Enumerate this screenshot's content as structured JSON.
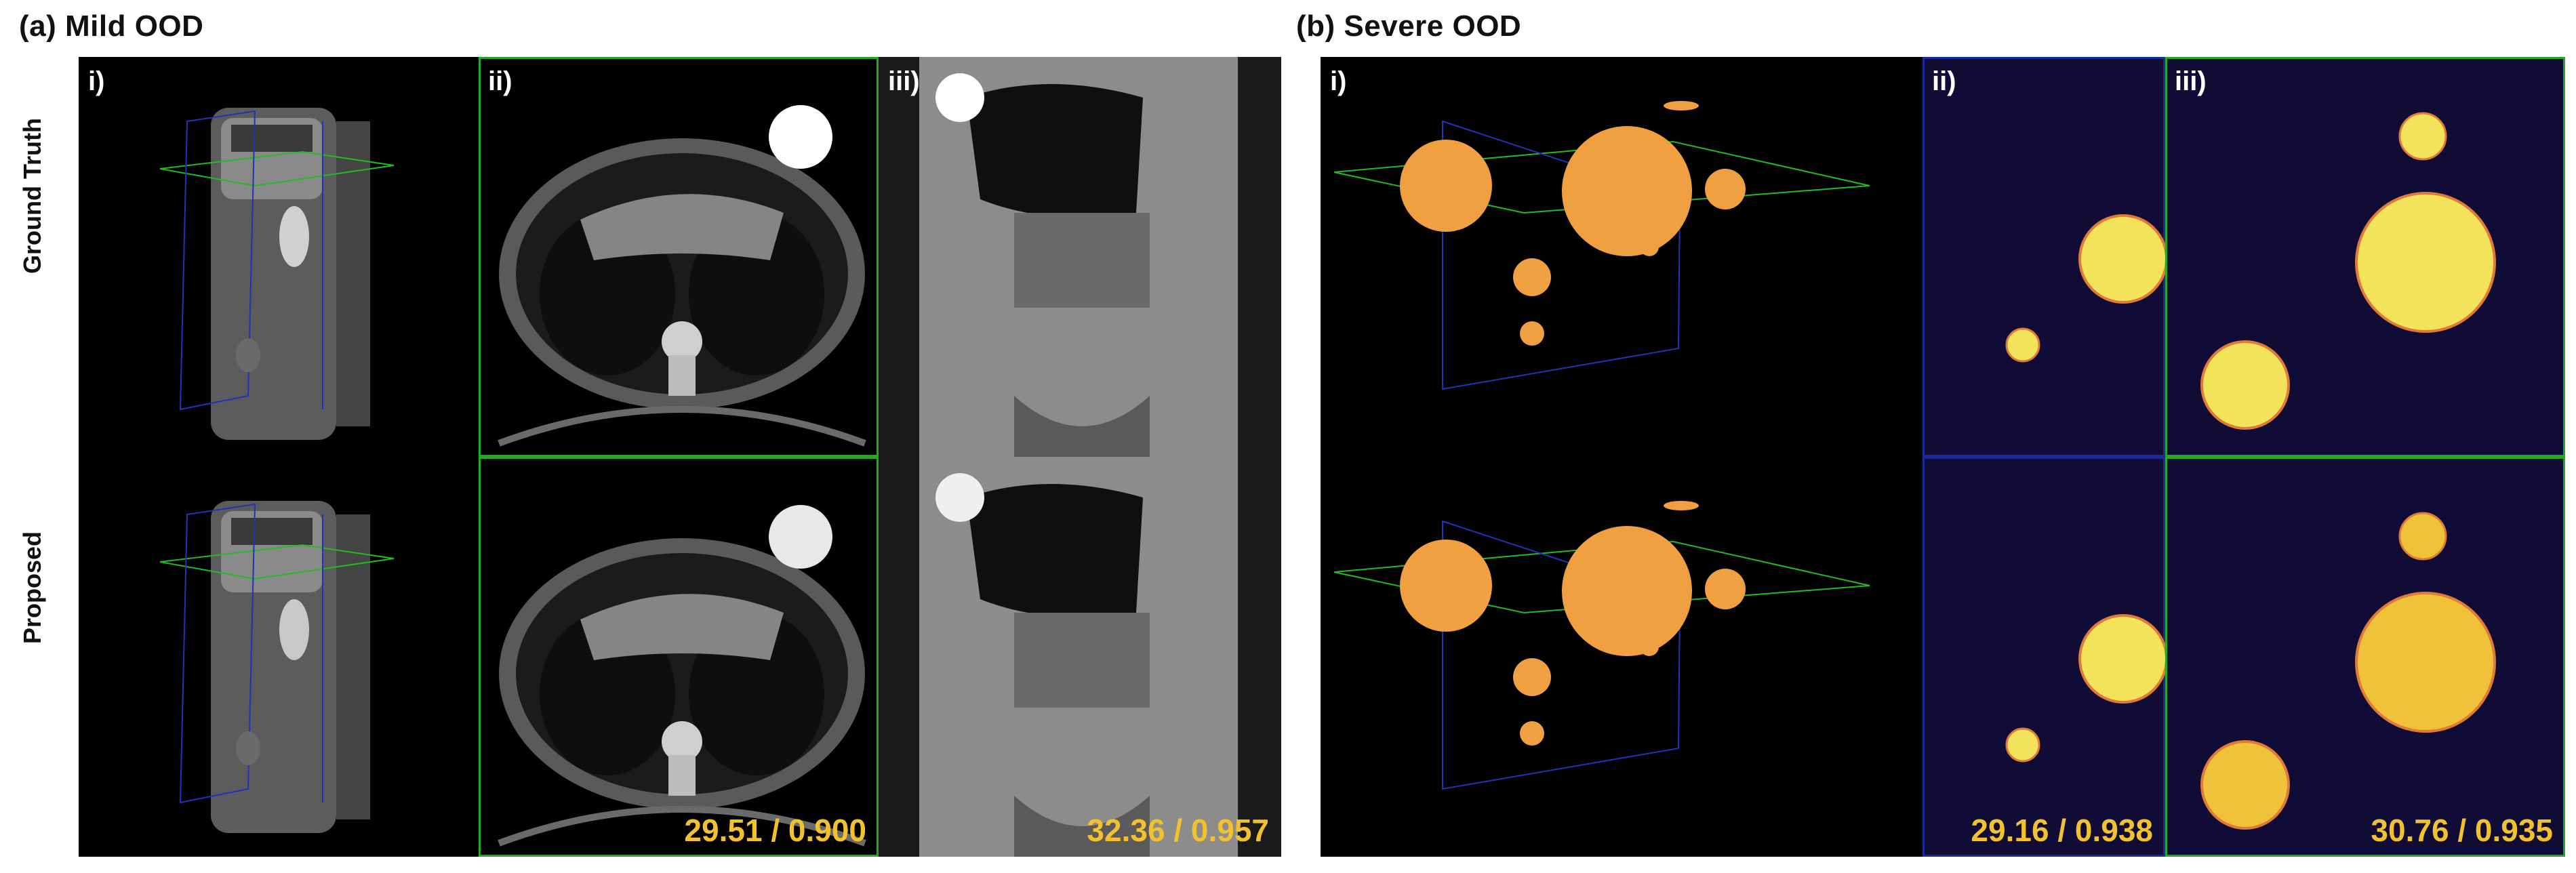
{
  "section_a": {
    "title": "(a) Mild OOD",
    "row_labels": [
      "Ground Truth",
      "Proposed"
    ],
    "col_labels": [
      "i)",
      "ii)",
      "iii)"
    ],
    "metrics": {
      "axial": "29.51 / 0.900",
      "coronal": "32.36 / 0.957"
    }
  },
  "section_b": {
    "title": "(b) Severe OOD",
    "col_labels": [
      "i)",
      "ii)",
      "iii)"
    ],
    "metrics": {
      "axial": "29.16 / 0.938",
      "coronal": "30.76 / 0.935"
    }
  },
  "colors": {
    "metric_text": "#f2c12e",
    "axial_frame": "#22aa22",
    "coronal_frame": "#1f2a9a",
    "sphere": "#f0a040",
    "slice_sphere": "#f3e35a",
    "slice_background": "#100c35"
  }
}
